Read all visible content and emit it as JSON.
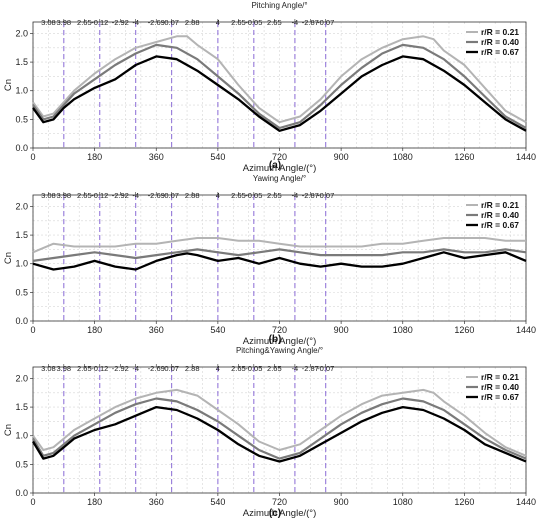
{
  "figure": {
    "x_ticks": [
      0,
      180,
      360,
      540,
      720,
      900,
      1080,
      1260,
      1440
    ],
    "y_ticks": [
      0,
      0.5,
      1.0,
      1.5,
      2.0
    ],
    "top_ticks": [
      "3.08",
      "3.98",
      "2.65",
      "-0.12",
      "-2.92",
      "-4",
      "-2.69",
      "0.07",
      "2.88",
      "4",
      "2.65",
      "-0.05",
      "2.65",
      "-4",
      "-2.87",
      "-0.07"
    ],
    "top_tick_x": [
      45,
      90,
      150,
      195,
      255,
      300,
      360,
      405,
      465,
      540,
      600,
      645,
      705,
      765,
      810,
      855
    ],
    "dashed_lines_x": [
      90,
      195,
      300,
      405,
      540,
      645,
      765,
      855
    ],
    "legend": [
      "r/R = 0.21",
      "r/R = 0.40",
      "r/R = 0.67"
    ],
    "xlabel": "Azimuth Angle/(°)",
    "ylabel": "Cn",
    "colors": {
      "s021": "#b4b4b4",
      "s040": "#7a7a7a",
      "s067": "#000000",
      "dashed": "#8a6bd6"
    }
  },
  "chart_data": [
    {
      "panel": "(a)",
      "type": "line",
      "title": "Pitching Angle/°",
      "xlabel": "Azimuth Angle/(°)",
      "ylabel": "Cn",
      "xlim": [
        0,
        1440
      ],
      "ylim": [
        0,
        2.2
      ],
      "legend_position": "top-right",
      "series": [
        {
          "name": "r/R = 0.21",
          "x": [
            0,
            30,
            60,
            90,
            120,
            180,
            240,
            300,
            360,
            420,
            450,
            480,
            540,
            600,
            660,
            720,
            780,
            840,
            900,
            960,
            1020,
            1080,
            1140,
            1170,
            1200,
            1260,
            1320,
            1380,
            1440
          ],
          "y": [
            0.8,
            0.55,
            0.6,
            0.8,
            1.0,
            1.3,
            1.55,
            1.75,
            1.85,
            1.95,
            1.95,
            1.8,
            1.55,
            1.1,
            0.7,
            0.45,
            0.55,
            0.85,
            1.25,
            1.55,
            1.75,
            1.9,
            1.95,
            1.9,
            1.7,
            1.45,
            1.05,
            0.65,
            0.45
          ]
        },
        {
          "name": "r/R = 0.40",
          "x": [
            0,
            30,
            60,
            90,
            120,
            180,
            240,
            300,
            360,
            420,
            480,
            540,
            600,
            660,
            720,
            780,
            840,
            900,
            960,
            1020,
            1080,
            1140,
            1200,
            1260,
            1320,
            1380,
            1440
          ],
          "y": [
            0.75,
            0.5,
            0.55,
            0.75,
            0.95,
            1.2,
            1.45,
            1.65,
            1.8,
            1.75,
            1.55,
            1.25,
            0.95,
            0.6,
            0.35,
            0.45,
            0.75,
            1.1,
            1.4,
            1.65,
            1.8,
            1.75,
            1.55,
            1.25,
            0.9,
            0.55,
            0.35
          ]
        },
        {
          "name": "r/R = 0.67",
          "x": [
            0,
            30,
            60,
            90,
            120,
            180,
            240,
            300,
            360,
            420,
            480,
            540,
            600,
            660,
            720,
            780,
            840,
            900,
            960,
            1020,
            1080,
            1140,
            1200,
            1260,
            1320,
            1380,
            1440
          ],
          "y": [
            0.7,
            0.45,
            0.5,
            0.7,
            0.85,
            1.05,
            1.2,
            1.45,
            1.6,
            1.55,
            1.35,
            1.1,
            0.85,
            0.55,
            0.3,
            0.4,
            0.65,
            0.95,
            1.25,
            1.45,
            1.6,
            1.55,
            1.35,
            1.1,
            0.8,
            0.5,
            0.3
          ]
        }
      ]
    },
    {
      "panel": "(b)",
      "type": "line",
      "title": "Yawing Angle/°",
      "xlabel": "Azimuth Angle/(°)",
      "ylabel": "Cn",
      "xlim": [
        0,
        1440
      ],
      "ylim": [
        0,
        2.2
      ],
      "legend_position": "top-right",
      "series": [
        {
          "name": "r/R = 0.21",
          "x": [
            0,
            60,
            120,
            180,
            240,
            300,
            360,
            420,
            480,
            540,
            600,
            660,
            720,
            780,
            840,
            900,
            960,
            1020,
            1080,
            1140,
            1200,
            1260,
            1320,
            1380,
            1440
          ],
          "y": [
            1.2,
            1.35,
            1.3,
            1.3,
            1.3,
            1.35,
            1.35,
            1.4,
            1.45,
            1.45,
            1.4,
            1.4,
            1.35,
            1.3,
            1.3,
            1.3,
            1.3,
            1.35,
            1.35,
            1.4,
            1.45,
            1.45,
            1.45,
            1.4,
            1.4
          ]
        },
        {
          "name": "r/R = 0.40",
          "x": [
            0,
            60,
            120,
            180,
            240,
            300,
            360,
            420,
            480,
            540,
            600,
            660,
            720,
            780,
            840,
            900,
            960,
            1020,
            1080,
            1140,
            1200,
            1260,
            1320,
            1380,
            1440
          ],
          "y": [
            1.05,
            1.1,
            1.15,
            1.2,
            1.15,
            1.1,
            1.15,
            1.2,
            1.25,
            1.2,
            1.15,
            1.2,
            1.25,
            1.2,
            1.15,
            1.15,
            1.15,
            1.15,
            1.2,
            1.2,
            1.25,
            1.2,
            1.2,
            1.25,
            1.2
          ]
        },
        {
          "name": "r/R = 0.67",
          "x": [
            0,
            30,
            60,
            120,
            180,
            240,
            300,
            360,
            420,
            450,
            480,
            540,
            600,
            660,
            720,
            780,
            840,
            900,
            960,
            1020,
            1080,
            1140,
            1200,
            1260,
            1320,
            1380,
            1440
          ],
          "y": [
            1.0,
            0.95,
            0.9,
            0.95,
            1.05,
            0.95,
            0.9,
            1.05,
            1.15,
            1.18,
            1.15,
            1.05,
            1.1,
            1.0,
            1.1,
            1.0,
            0.95,
            1.0,
            0.95,
            0.95,
            1.0,
            1.1,
            1.2,
            1.1,
            1.15,
            1.2,
            1.05
          ]
        }
      ]
    },
    {
      "panel": "(c)",
      "type": "line",
      "title": "Pitching&Yawing Angle/°",
      "xlabel": "Azimuth Angle/(°)",
      "ylabel": "Cn",
      "xlim": [
        0,
        1440
      ],
      "ylim": [
        0,
        2.2
      ],
      "legend_position": "top-right",
      "series": [
        {
          "name": "r/R = 0.21",
          "x": [
            0,
            30,
            60,
            90,
            120,
            180,
            240,
            300,
            360,
            420,
            480,
            540,
            600,
            660,
            720,
            780,
            840,
            900,
            960,
            1020,
            1080,
            1140,
            1170,
            1200,
            1260,
            1320,
            1380,
            1440
          ],
          "y": [
            1.0,
            0.75,
            0.8,
            0.95,
            1.1,
            1.3,
            1.5,
            1.65,
            1.75,
            1.8,
            1.7,
            1.45,
            1.2,
            0.9,
            0.75,
            0.85,
            1.1,
            1.35,
            1.55,
            1.7,
            1.75,
            1.8,
            1.75,
            1.6,
            1.35,
            1.05,
            0.8,
            0.65
          ]
        },
        {
          "name": "r/R = 0.40",
          "x": [
            0,
            30,
            60,
            90,
            120,
            180,
            240,
            300,
            360,
            420,
            480,
            540,
            600,
            660,
            720,
            780,
            840,
            900,
            960,
            1020,
            1080,
            1140,
            1200,
            1260,
            1320,
            1380,
            1440
          ],
          "y": [
            0.95,
            0.65,
            0.7,
            0.85,
            1.0,
            1.2,
            1.4,
            1.55,
            1.65,
            1.6,
            1.45,
            1.25,
            1.0,
            0.75,
            0.6,
            0.7,
            0.95,
            1.2,
            1.4,
            1.55,
            1.65,
            1.6,
            1.45,
            1.2,
            0.95,
            0.75,
            0.6
          ]
        },
        {
          "name": "r/R = 0.67",
          "x": [
            0,
            30,
            60,
            90,
            120,
            180,
            240,
            300,
            360,
            420,
            480,
            540,
            600,
            660,
            720,
            780,
            840,
            900,
            960,
            1020,
            1080,
            1140,
            1200,
            1260,
            1320,
            1380,
            1440
          ],
          "y": [
            0.9,
            0.6,
            0.65,
            0.8,
            0.95,
            1.1,
            1.2,
            1.35,
            1.5,
            1.45,
            1.3,
            1.1,
            0.85,
            0.65,
            0.55,
            0.65,
            0.85,
            1.05,
            1.25,
            1.4,
            1.5,
            1.45,
            1.3,
            1.1,
            0.85,
            0.7,
            0.55
          ]
        }
      ]
    }
  ]
}
